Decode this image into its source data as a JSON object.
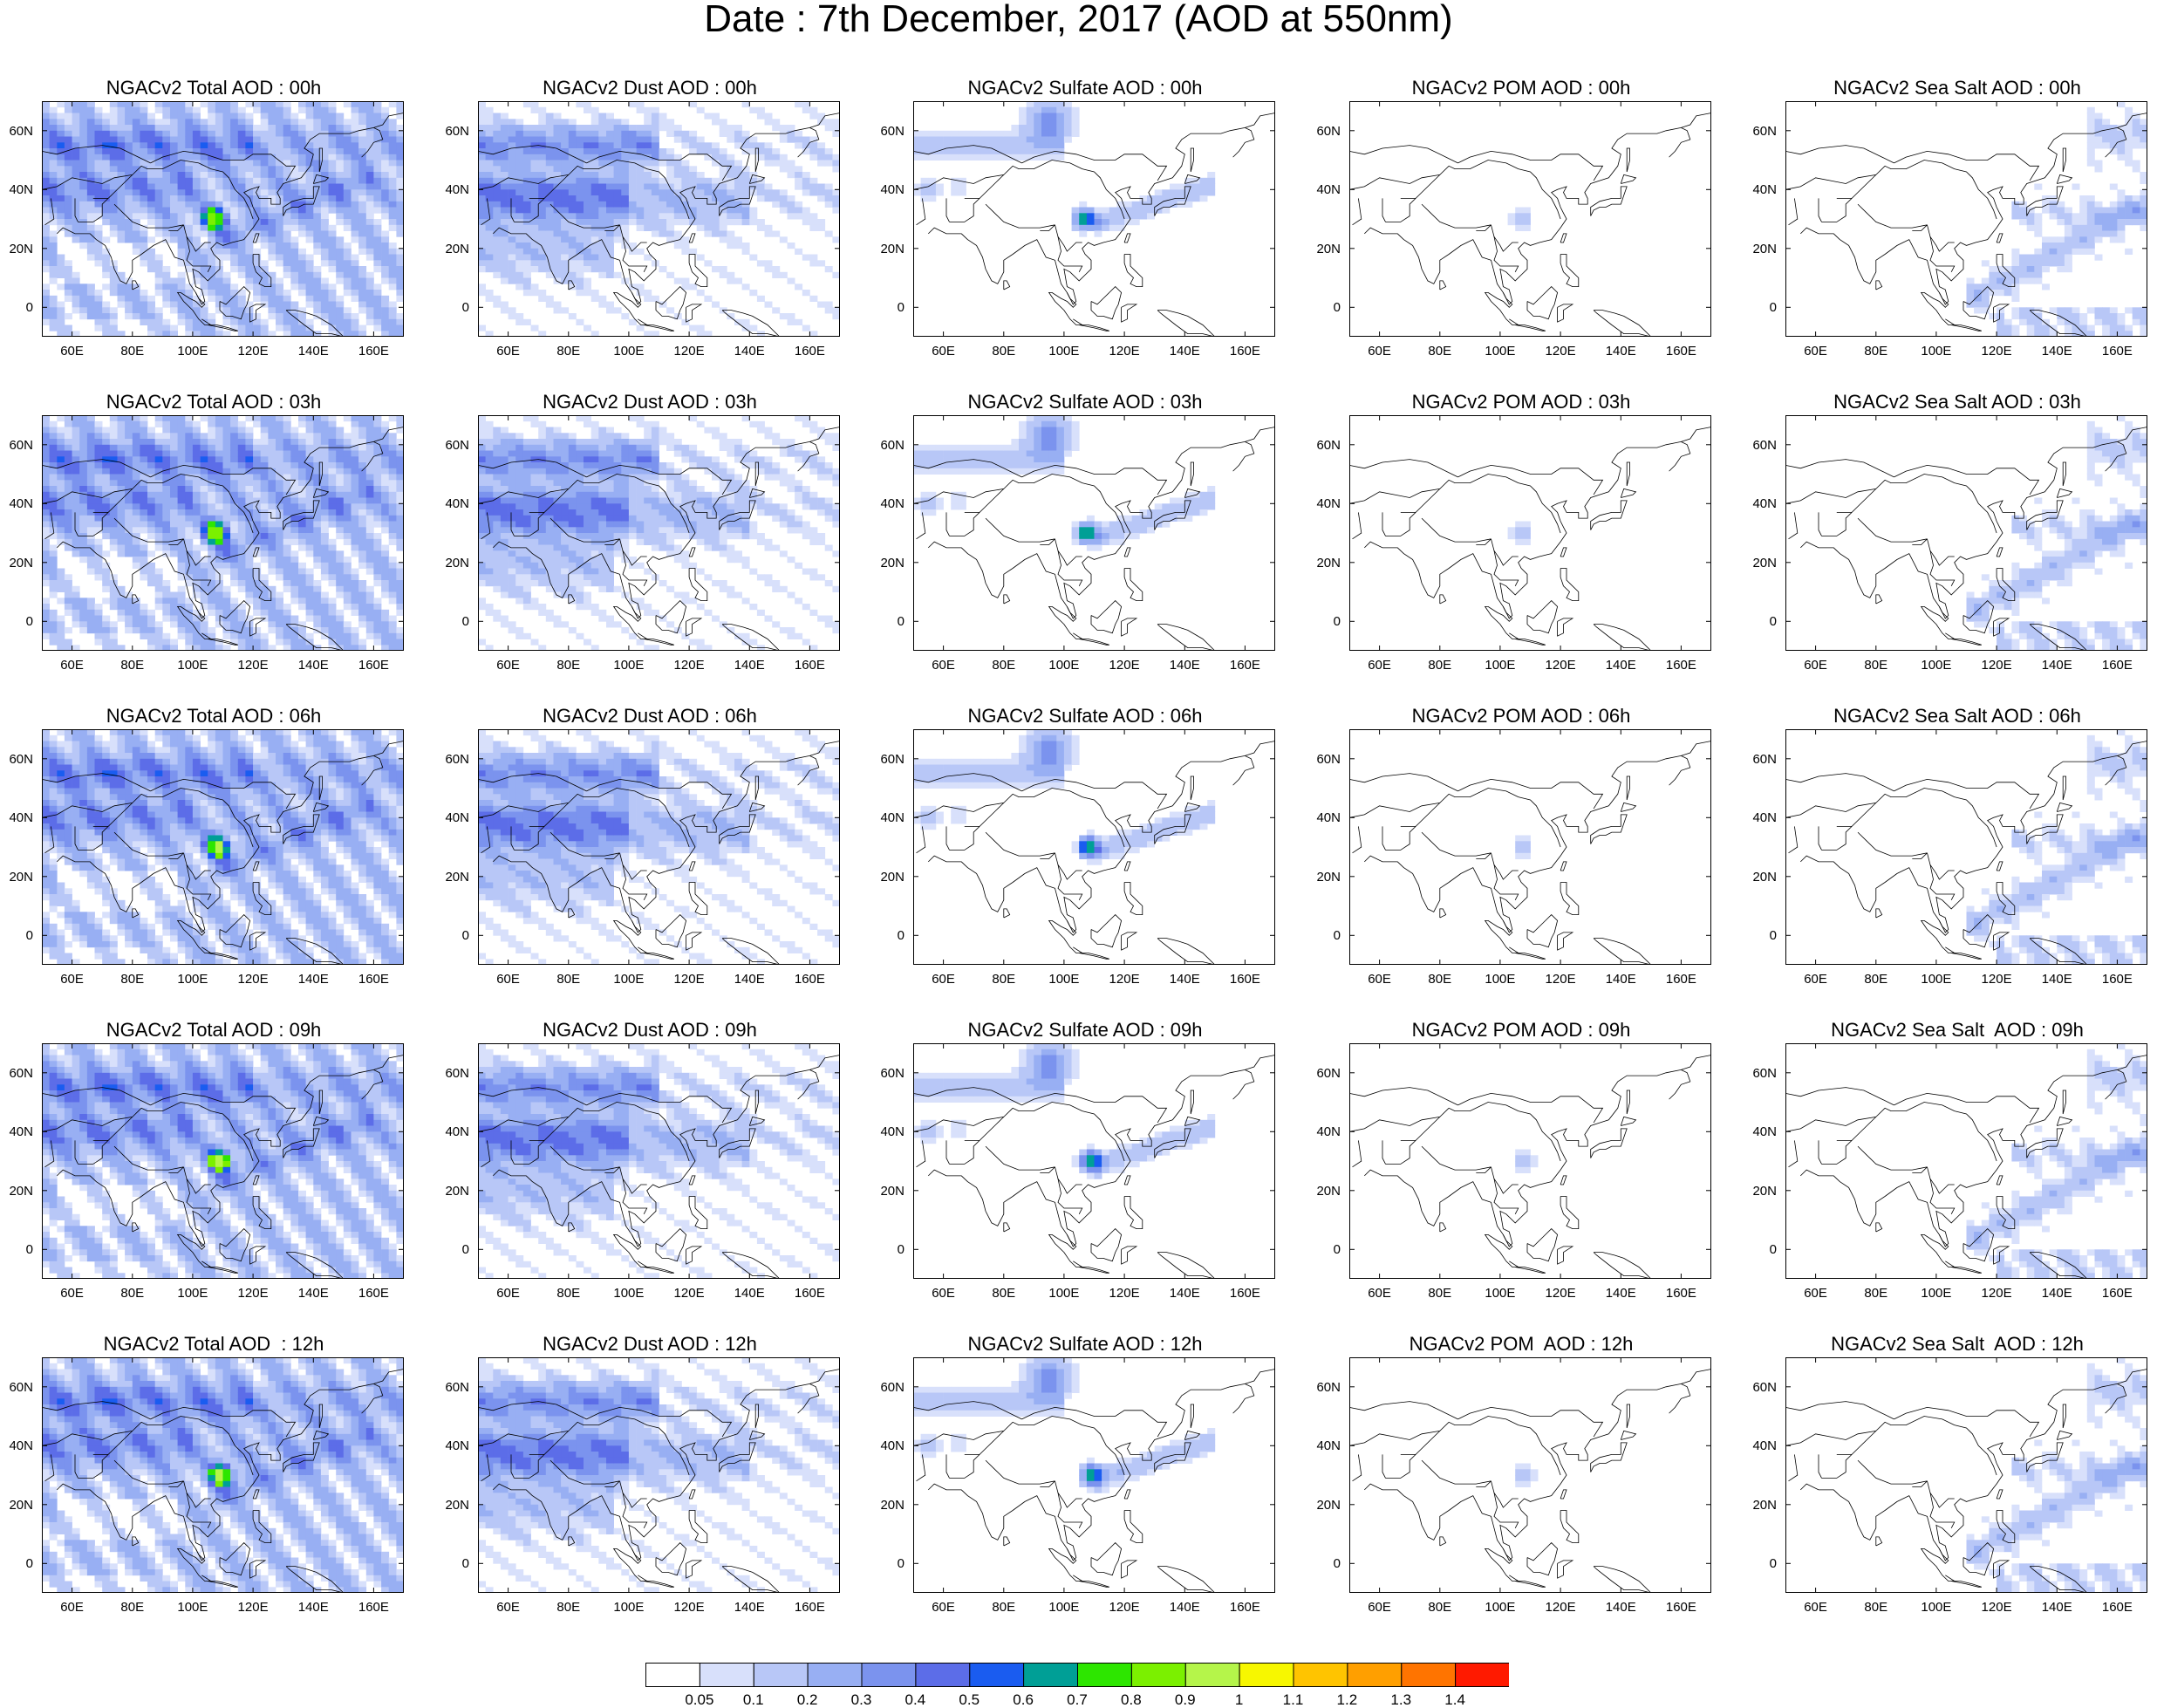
{
  "title": "Date : 7th December, 2017 (AOD at 550nm)",
  "colorbar": {
    "colors": [
      "#ffffff",
      "#d8e0fb",
      "#b8c7f7",
      "#98aff3",
      "#7b93ee",
      "#5c6de8",
      "#1a5cf0",
      "#009f96",
      "#2de600",
      "#7bf000",
      "#b5f54a",
      "#f7f700",
      "#ffc400",
      "#ff9f00",
      "#ff7400",
      "#ff1a00"
    ],
    "labels": [
      "0.05",
      "0.1",
      "0.2",
      "0.3",
      "0.4",
      "0.5",
      "0.6",
      "0.7",
      "0.8",
      "0.9",
      "1",
      "1.1",
      "1.2",
      "1.3",
      "1.4"
    ]
  },
  "axes": {
    "lat_labels": [
      "60N",
      "40N",
      "20N",
      "0"
    ],
    "lon_labels": [
      "60E",
      "80E",
      "100E",
      "120E",
      "140E",
      "160E"
    ]
  },
  "rows": [
    {
      "hour": "00h",
      "panels": [
        {
          "title": "NGACv2 Total AOD : 00h",
          "species": "total"
        },
        {
          "title": "NGACv2 Dust AOD : 00h",
          "species": "dust"
        },
        {
          "title": "NGACv2 Sulfate AOD : 00h",
          "species": "sulfate"
        },
        {
          "title": "NGACv2 POM AOD : 00h",
          "species": "pom"
        },
        {
          "title": "NGACv2 Sea Salt AOD : 00h",
          "species": "seasalt"
        }
      ]
    },
    {
      "hour": "03h",
      "panels": [
        {
          "title": "NGACv2 Total AOD : 03h",
          "species": "total"
        },
        {
          "title": "NGACv2 Dust AOD : 03h",
          "species": "dust"
        },
        {
          "title": "NGACv2 Sulfate AOD : 03h",
          "species": "sulfate"
        },
        {
          "title": "NGACv2 POM AOD : 03h",
          "species": "pom"
        },
        {
          "title": "NGACv2 Sea Salt AOD : 03h",
          "species": "seasalt"
        }
      ]
    },
    {
      "hour": "06h",
      "panels": [
        {
          "title": "NGACv2 Total AOD : 06h",
          "species": "total"
        },
        {
          "title": "NGACv2 Dust AOD : 06h",
          "species": "dust"
        },
        {
          "title": "NGACv2 Sulfate AOD : 06h",
          "species": "sulfate"
        },
        {
          "title": "NGACv2 POM AOD : 06h",
          "species": "pom"
        },
        {
          "title": "NGACv2 Sea Salt AOD : 06h",
          "species": "seasalt"
        }
      ]
    },
    {
      "hour": "09h",
      "panels": [
        {
          "title": "NGACv2 Total AOD : 09h",
          "species": "total"
        },
        {
          "title": "NGACv2 Dust AOD : 09h",
          "species": "dust"
        },
        {
          "title": "NGACv2 Sulfate AOD : 09h",
          "species": "sulfate"
        },
        {
          "title": "NGACv2 POM AOD : 09h",
          "species": "pom"
        },
        {
          "title": "NGACv2 Sea Salt  AOD : 09h",
          "species": "seasalt"
        }
      ]
    },
    {
      "hour": "12h",
      "panels": [
        {
          "title": "NGACv2 Total AOD  : 12h",
          "species": "total"
        },
        {
          "title": "NGACv2 Dust AOD : 12h",
          "species": "dust"
        },
        {
          "title": "NGACv2 Sulfate AOD : 12h",
          "species": "sulfate"
        },
        {
          "title": "NGACv2 POM  AOD : 12h",
          "species": "pom"
        },
        {
          "title": "NGACv2 Sea Salt  AOD : 12h",
          "species": "seasalt"
        }
      ]
    }
  ]
}
